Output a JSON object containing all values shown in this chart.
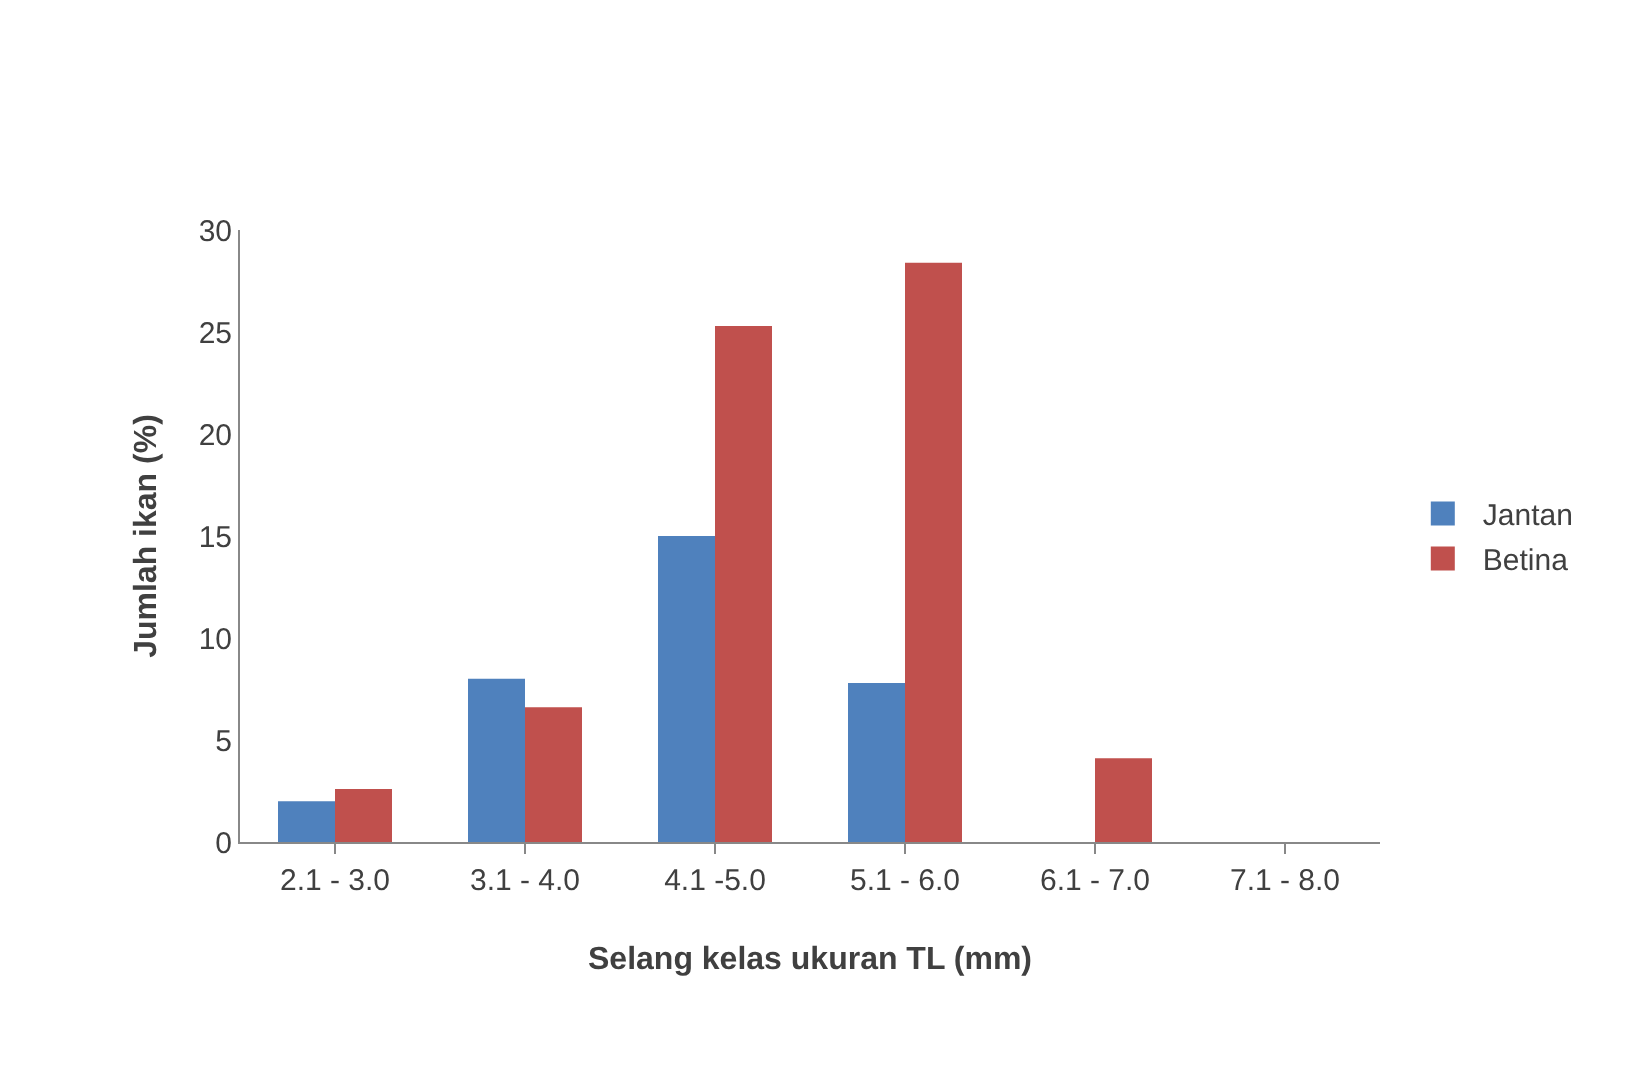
{
  "chart_data": {
    "type": "bar",
    "xlabel": "Selang kelas ukuran TL (mm)",
    "ylabel": "Jumlah ikan (%)",
    "categories": [
      "2.1 - 3.0",
      "3.1 - 4.0",
      "4.1 -5.0",
      "5.1 - 6.0",
      "6.1 - 7.0",
      "7.1 - 8.0"
    ],
    "series": [
      {
        "name": "Jantan",
        "color": "#4f81bd",
        "values": [
          2,
          8,
          15,
          7.8,
          0,
          0
        ]
      },
      {
        "name": "Betina",
        "color": "#c0504d",
        "values": [
          2.6,
          6.6,
          25.3,
          28.4,
          4.1,
          0
        ]
      }
    ],
    "ylim": [
      0,
      30
    ],
    "yticks": [
      0,
      5,
      10,
      15,
      20,
      25,
      30
    ],
    "grid": false,
    "legend": "right"
  }
}
